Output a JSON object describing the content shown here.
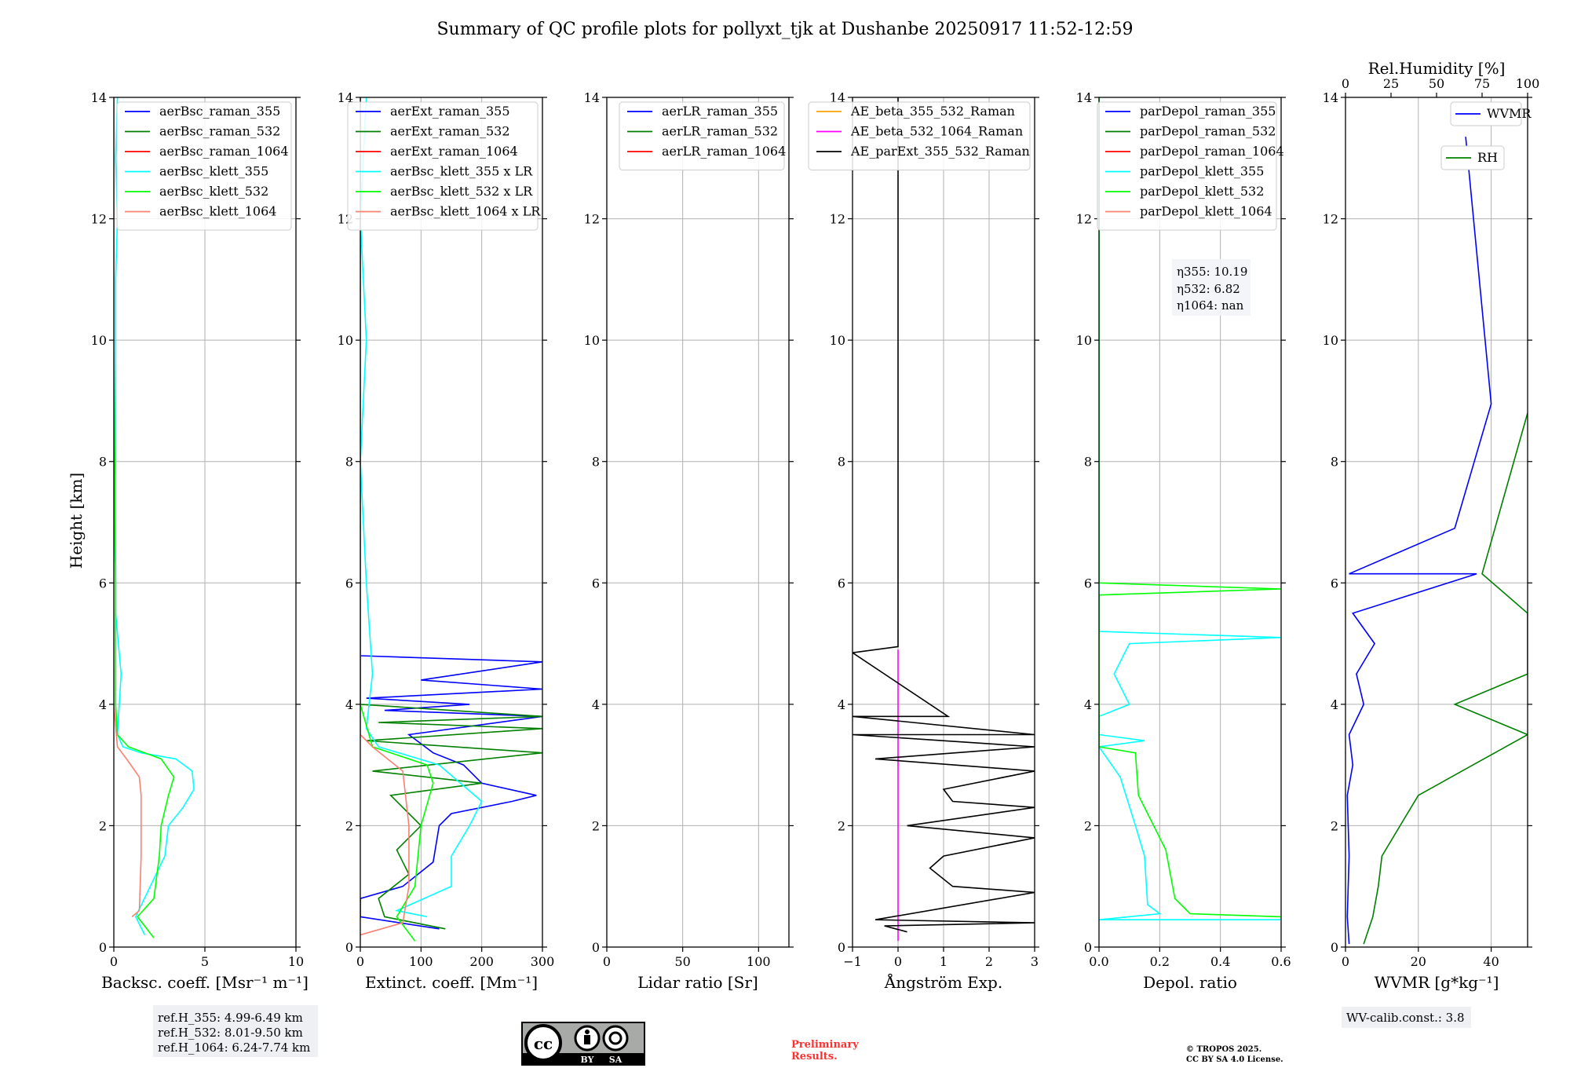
{
  "title": "Summary of QC profile plots for pollyxt_tjk at Dushanbe 20250917 11:52-12:59",
  "shared_ylabel": "Height [km]",
  "colors": {
    "blue": "#0000ff",
    "green": "#008000",
    "red": "#ff0000",
    "cyan": "#00ffff",
    "lime": "#00ff00",
    "salmon": "#fa8072",
    "orange": "#ffa500",
    "magenta": "#ff00ff",
    "black": "#000000",
    "gridline": "#b0b0b0"
  },
  "footer": {
    "refH": [
      "ref.H_355: 4.99-6.49 km",
      "ref.H_532: 8.01-9.50 km",
      "ref.H_1064: 6.24-7.74 km"
    ],
    "preliminary": [
      "Preliminary",
      "Results."
    ],
    "copyright": [
      "© TROPOS 2025.",
      "CC BY SA 4.0 License."
    ],
    "wv_calib": "WV-calib.const.: 3.8",
    "license_badge": {
      "cc": "cc",
      "by": "BY",
      "sa": "SA"
    }
  },
  "eta_box": [
    "η355: 10.19",
    "η532: 6.82",
    "η1064: nan"
  ],
  "chart_data": [
    {
      "type": "line",
      "xlabel": "Backsc. coeff. [Msr⁻¹ m⁻¹]",
      "ylabel": "Height [km]",
      "xlim": [
        0,
        10
      ],
      "ylim": [
        0,
        14
      ],
      "xticks": [
        "0",
        "5",
        "10"
      ],
      "yticks": [
        "0",
        "2",
        "4",
        "6",
        "8",
        "10",
        "12",
        "14"
      ],
      "grid": true,
      "legend": "top-right",
      "series": [
        {
          "name": "aerBsc_raman_355",
          "color": "#0000ff",
          "points": []
        },
        {
          "name": "aerBsc_raman_532",
          "color": "#008000",
          "points": []
        },
        {
          "name": "aerBsc_raman_1064",
          "color": "#ff0000",
          "points": []
        },
        {
          "name": "aerBsc_klett_355",
          "color": "#00ffff",
          "points": [
            [
              1.7,
              0.2
            ],
            [
              1.2,
              0.5
            ],
            [
              2.8,
              1.5
            ],
            [
              3.0,
              2.0
            ],
            [
              3.8,
              2.3
            ],
            [
              4.4,
              2.6
            ],
            [
              4.3,
              2.9
            ],
            [
              3.4,
              3.1
            ],
            [
              1.5,
              3.2
            ],
            [
              0.5,
              3.3
            ],
            [
              0.2,
              3.5
            ],
            [
              0.3,
              4.0
            ],
            [
              0.4,
              4.5
            ],
            [
              0.1,
              5.5
            ],
            [
              0.1,
              6.3
            ],
            [
              0.0,
              7.0
            ],
            [
              0.1,
              8.0
            ],
            [
              0.1,
              9.0
            ],
            [
              0.1,
              10.0
            ],
            [
              0.1,
              11.0
            ],
            [
              0.2,
              12.0
            ],
            [
              0.1,
              13.0
            ],
            [
              0.2,
              14.0
            ]
          ]
        },
        {
          "name": "aerBsc_klett_532",
          "color": "#00ff00",
          "points": [
            [
              2.2,
              0.15
            ],
            [
              1.3,
              0.5
            ],
            [
              2.2,
              0.8
            ],
            [
              2.5,
              1.5
            ],
            [
              2.6,
              2.0
            ],
            [
              3.0,
              2.5
            ],
            [
              3.3,
              2.8
            ],
            [
              2.6,
              3.1
            ],
            [
              0.8,
              3.3
            ],
            [
              0.2,
              3.5
            ],
            [
              0.1,
              4.0
            ],
            [
              0.1,
              6.0
            ],
            [
              0.0,
              10.0
            ],
            [
              0.0,
              14.0
            ]
          ]
        },
        {
          "name": "aerBsc_klett_1064",
          "color": "#fa8072",
          "points": [
            [
              1.0,
              0.5
            ],
            [
              1.4,
              0.6
            ],
            [
              1.5,
              1.5
            ],
            [
              1.5,
              2.5
            ],
            [
              1.4,
              2.8
            ],
            [
              0.7,
              3.1
            ],
            [
              0.2,
              3.3
            ],
            [
              0.0,
              4.0
            ],
            [
              0.0,
              14.0
            ]
          ]
        }
      ]
    },
    {
      "type": "line",
      "xlabel": "Extinct. coeff. [Mm⁻¹]",
      "xlim": [
        0,
        300
      ],
      "ylim": [
        0,
        14
      ],
      "xticks": [
        "0",
        "100",
        "200",
        "300"
      ],
      "yticks": [
        "0",
        "2",
        "4",
        "6",
        "8",
        "10",
        "12",
        "14"
      ],
      "grid": true,
      "legend": "top-right",
      "series": [
        {
          "name": "aerExt_raman_355",
          "color": "#0000ff",
          "points": [
            [
              130,
              0.3
            ],
            [
              0,
              0.5
            ],
            [
              0,
              0.8
            ],
            [
              70,
              1.0
            ],
            [
              120,
              1.4
            ],
            [
              130,
              2.0
            ],
            [
              150,
              2.2
            ],
            [
              250,
              2.4
            ],
            [
              290,
              2.5
            ],
            [
              200,
              2.7
            ],
            [
              170,
              3.0
            ],
            [
              120,
              3.2
            ],
            [
              80,
              3.5
            ],
            [
              300,
              3.8
            ],
            [
              40,
              3.9
            ],
            [
              180,
              4.0
            ],
            [
              10,
              4.1
            ],
            [
              300,
              4.25
            ],
            [
              100,
              4.4
            ],
            [
              300,
              4.7
            ],
            [
              0,
              4.8
            ],
            [
              0,
              14.0
            ]
          ]
        },
        {
          "name": "aerExt_raman_532",
          "color": "#008000",
          "points": [
            [
              140,
              0.3
            ],
            [
              40,
              0.5
            ],
            [
              30,
              0.8
            ],
            [
              80,
              1.2
            ],
            [
              60,
              1.6
            ],
            [
              100,
              2.0
            ],
            [
              50,
              2.5
            ],
            [
              200,
              2.7
            ],
            [
              20,
              2.9
            ],
            [
              300,
              3.2
            ],
            [
              10,
              3.4
            ],
            [
              300,
              3.6
            ],
            [
              30,
              3.7
            ],
            [
              300,
              3.8
            ],
            [
              0,
              4.0
            ],
            [
              0,
              14.0
            ]
          ]
        },
        {
          "name": "aerExt_raman_1064",
          "color": "#ff0000",
          "points": []
        },
        {
          "name": "aerBsc_klett_355 x LR",
          "color": "#00ffff",
          "points": [
            [
              110,
              0.5
            ],
            [
              60,
              0.6
            ],
            [
              150,
              1.0
            ],
            [
              150,
              1.5
            ],
            [
              180,
              2.0
            ],
            [
              200,
              2.4
            ],
            [
              130,
              3.0
            ],
            [
              30,
              3.3
            ],
            [
              10,
              3.6
            ],
            [
              20,
              4.5
            ],
            [
              10,
              6.0
            ],
            [
              0,
              8.0
            ],
            [
              10,
              10.0
            ],
            [
              0,
              12.0
            ],
            [
              10,
              14.0
            ]
          ]
        },
        {
          "name": "aerBsc_klett_532 x LR",
          "color": "#00ff00",
          "points": [
            [
              90,
              0.1
            ],
            [
              60,
              0.5
            ],
            [
              90,
              1.0
            ],
            [
              100,
              2.0
            ],
            [
              120,
              2.7
            ],
            [
              110,
              3.0
            ],
            [
              20,
              3.3
            ],
            [
              0,
              4.0
            ],
            [
              0,
              14.0
            ]
          ]
        },
        {
          "name": "aerBsc_klett_1064 x LR",
          "color": "#fa8072",
          "points": [
            [
              0,
              0.2
            ],
            [
              70,
              0.4
            ],
            [
              80,
              1.0
            ],
            [
              80,
              2.0
            ],
            [
              70,
              2.9
            ],
            [
              20,
              3.3
            ],
            [
              0,
              3.5
            ],
            [
              0,
              14.0
            ]
          ]
        }
      ]
    },
    {
      "type": "line",
      "xlabel": "Lidar ratio [Sr]",
      "xlim": [
        0,
        120
      ],
      "ylim": [
        0,
        14
      ],
      "xticks": [
        "0",
        "50",
        "100"
      ],
      "yticks": [
        "0",
        "2",
        "4",
        "6",
        "8",
        "10",
        "12",
        "14"
      ],
      "grid": true,
      "legend": "top-right",
      "series": [
        {
          "name": "aerLR_raman_355",
          "color": "#0000ff",
          "points": []
        },
        {
          "name": "aerLR_raman_532",
          "color": "#008000",
          "points": []
        },
        {
          "name": "aerLR_raman_1064",
          "color": "#ff0000",
          "points": []
        }
      ]
    },
    {
      "type": "line",
      "xlabel": "Ångström Exp.",
      "xlim": [
        -1,
        3
      ],
      "ylim": [
        0,
        14
      ],
      "xticks": [
        "−1",
        "0",
        "1",
        "2",
        "3"
      ],
      "yticks": [
        "0",
        "2",
        "4",
        "6",
        "8",
        "10",
        "12",
        "14"
      ],
      "grid": true,
      "legend": "top-right",
      "series": [
        {
          "name": "AE_beta_355_532_Raman",
          "color": "#ffa500",
          "points": []
        },
        {
          "name": "AE_beta_532_1064_Raman",
          "color": "#ff00ff",
          "points": [
            [
              0,
              0.1
            ],
            [
              0,
              4.9
            ]
          ]
        },
        {
          "name": "AE_parExt_355_532_Raman",
          "color": "#000000",
          "points": [
            [
              0.2,
              0.25
            ],
            [
              -0.3,
              0.35
            ],
            [
              3,
              0.4
            ],
            [
              -0.5,
              0.45
            ],
            [
              3,
              0.9
            ],
            [
              1.2,
              1.0
            ],
            [
              0.7,
              1.3
            ],
            [
              1,
              1.5
            ],
            [
              3,
              1.8
            ],
            [
              0.2,
              2.0
            ],
            [
              3,
              2.3
            ],
            [
              1.2,
              2.4
            ],
            [
              1,
              2.6
            ],
            [
              3,
              2.9
            ],
            [
              -0.5,
              3.1
            ],
            [
              3,
              3.3
            ],
            [
              -1,
              3.5
            ],
            [
              3,
              3.5
            ],
            [
              -1,
              3.8
            ],
            [
              1.1,
              3.8
            ],
            [
              -1,
              4.85
            ],
            [
              0,
              4.95
            ],
            [
              0,
              14.0
            ]
          ]
        }
      ]
    },
    {
      "type": "line",
      "xlabel": "Depol. ratio",
      "xlim": [
        0,
        0.6
      ],
      "ylim": [
        0,
        14
      ],
      "xticks": [
        "0.0",
        "0.2",
        "0.4",
        "0.6"
      ],
      "yticks": [
        "0",
        "2",
        "4",
        "6",
        "8",
        "10",
        "12",
        "14"
      ],
      "grid": true,
      "legend": "top-right",
      "series": [
        {
          "name": "parDepol_raman_355",
          "color": "#0000ff",
          "points": []
        },
        {
          "name": "parDepol_raman_532",
          "color": "#008000",
          "points": []
        },
        {
          "name": "parDepol_raman_1064",
          "color": "#ff0000",
          "points": []
        },
        {
          "name": "parDepol_klett_355",
          "color": "#00ffff",
          "points": [
            [
              0.6,
              0.45
            ],
            [
              0.0,
              0.45
            ],
            [
              0.2,
              0.55
            ],
            [
              0.16,
              0.7
            ],
            [
              0.15,
              1.5
            ],
            [
              0.12,
              2.0
            ],
            [
              0.07,
              2.8
            ],
            [
              0.0,
              3.3
            ],
            [
              0.15,
              3.4
            ],
            [
              0.0,
              3.5
            ],
            [
              0.0,
              3.8
            ],
            [
              0.1,
              4.0
            ],
            [
              0.05,
              4.5
            ],
            [
              0.1,
              5.0
            ],
            [
              0.6,
              5.1
            ],
            [
              0.0,
              5.2
            ],
            [
              0.0,
              14.0
            ]
          ]
        },
        {
          "name": "parDepol_klett_532",
          "color": "#00ff00",
          "points": [
            [
              0.6,
              0.5
            ],
            [
              0.3,
              0.55
            ],
            [
              0.25,
              0.8
            ],
            [
              0.22,
              1.6
            ],
            [
              0.18,
              2.0
            ],
            [
              0.13,
              2.5
            ],
            [
              0.12,
              3.2
            ],
            [
              0.0,
              3.3
            ],
            [
              0.0,
              5.8
            ],
            [
              0.6,
              5.9
            ],
            [
              0.0,
              6.0
            ],
            [
              0.0,
              14.0
            ]
          ]
        },
        {
          "name": "parDepol_klett_1064",
          "color": "#fa8072",
          "points": []
        }
      ]
    },
    {
      "type": "line",
      "xlabel": "WVMR [g*kg⁻¹]",
      "x2label": "Rel.Humidity [%]",
      "xlim": [
        0,
        50
      ],
      "x2lim": [
        0,
        100
      ],
      "ylim": [
        0,
        14
      ],
      "xticks": [
        "0",
        "20",
        "40"
      ],
      "x2ticks": [
        "0",
        "25",
        "50",
        "75",
        "100"
      ],
      "yticks": [
        "0",
        "2",
        "4",
        "6",
        "8",
        "10",
        "12",
        "14"
      ],
      "grid": true,
      "legend": "top-right",
      "series": [
        {
          "name": "WVMR",
          "color": "#0000ff",
          "points": [
            [
              1,
              0.05
            ],
            [
              0.5,
              0.5
            ],
            [
              1,
              1.5
            ],
            [
              0.5,
              2.5
            ],
            [
              2,
              3.0
            ],
            [
              1,
              3.5
            ],
            [
              5,
              4.0
            ],
            [
              3,
              4.5
            ],
            [
              8,
              5.0
            ],
            [
              2,
              5.5
            ],
            [
              36,
              6.15
            ],
            [
              1,
              6.15
            ],
            [
              30,
              6.9
            ],
            [
              40,
              8.95
            ],
            [
              33,
              13.35
            ]
          ]
        },
        {
          "name": "RH",
          "color": "#008000",
          "points": [
            [
              10,
              0.05
            ],
            [
              15,
              0.5
            ],
            [
              18,
              1.0
            ],
            [
              20,
              1.5
            ],
            [
              30,
              2.0
            ],
            [
              40,
              2.5
            ],
            [
              70,
              3.0
            ],
            [
              100,
              3.5
            ],
            [
              60,
              4.0
            ],
            [
              100,
              4.5
            ],
            [
              100,
              5.0
            ],
            [
              100,
              5.5
            ],
            [
              75,
              6.15
            ],
            [
              100,
              8.8
            ]
          ]
        }
      ]
    }
  ]
}
